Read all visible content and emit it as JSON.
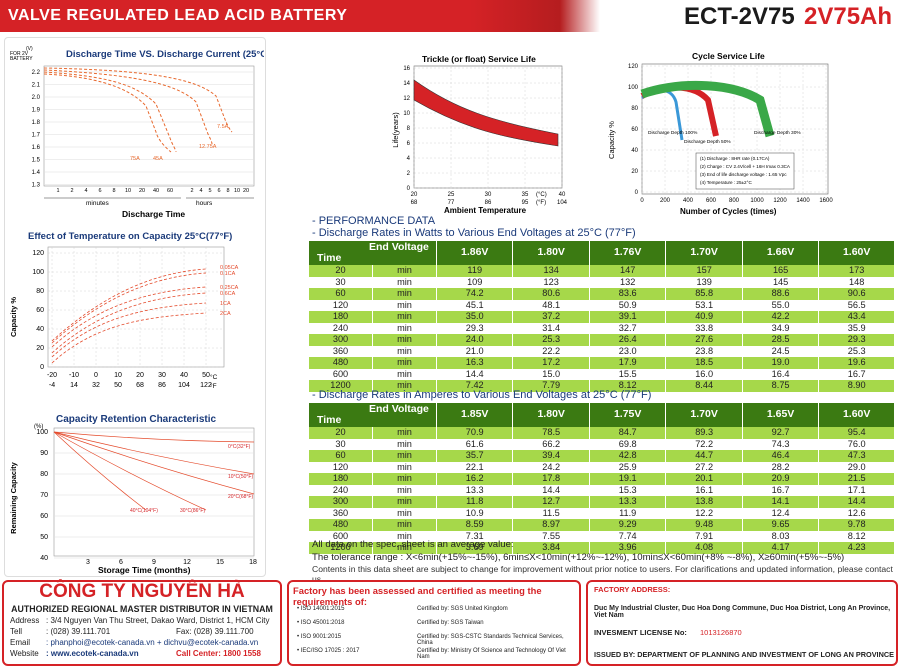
{
  "header": {
    "title": "VALVE REGULATED LEAD ACID BATTERY",
    "model": "ECT-2V75",
    "capacity": "2V75Ah"
  },
  "charts": {
    "discharge_curve": {
      "title": "Discharge Time VS. Discharge Current (25°C)",
      "ylabel_line1": "(V)",
      "ylabel_line2": "FOR 2V",
      "ylabel_line3": "BATTERY",
      "xlabel": "Discharge Time",
      "minutes": "minutes",
      "hours": "hours",
      "yticks": [
        "2.2",
        "2.1",
        "2.0",
        "1.9",
        "1.8",
        "1.7",
        "1.6",
        "1.5",
        "1.4",
        "1.3"
      ],
      "xticks_min": [
        "1",
        "2",
        "4",
        "6",
        "8",
        "10",
        "20",
        "40",
        "60"
      ],
      "xticks_hr": [
        "2",
        "4",
        "5",
        "6",
        "8",
        "10",
        "20"
      ],
      "labels": [
        "75A",
        "45A",
        "12.75A",
        "7.5A"
      ]
    },
    "temperature": {
      "title": "Effect of Temperature on Capacity 25°C(77°F)",
      "ylabel": "Capacity %",
      "yticks": [
        "120",
        "100",
        "80",
        "60",
        "40",
        "20",
        "0"
      ],
      "xticks_c": [
        "-20",
        "-10",
        "0",
        "10",
        "20",
        "30",
        "40",
        "50"
      ],
      "xticks_f": [
        "-4",
        "14",
        "32",
        "50",
        "68",
        "86",
        "104",
        "122"
      ],
      "unit_c": "°C",
      "unit_f": "°F",
      "labels": [
        "0.05CA",
        "0.1CA",
        "0.25CA",
        "0.6CA",
        "1CA",
        "2CA"
      ]
    },
    "retention": {
      "title": "Capacity Retention Characteristic",
      "ylabel": "Remaining Capacity",
      "unit": "(%)",
      "yticks": [
        "100",
        "90",
        "80",
        "70",
        "60",
        "50",
        "40"
      ],
      "xticks": [
        "3",
        "6",
        "9",
        "12",
        "15",
        "18"
      ],
      "xlabel": "Storage Time (months)",
      "labels": [
        "0°C(32°F)",
        "10°C(50°F)",
        "20°C(68°F)",
        "30°C(86°F)",
        "40°C(104°F)"
      ]
    },
    "trickle": {
      "title": "Trickle (or float) Service Life",
      "ylabel": "Life(years)",
      "yticks": [
        "16",
        "14",
        "12",
        "10",
        "8",
        "6",
        "4",
        "2",
        "0"
      ],
      "xticks_c": [
        "20",
        "25",
        "30",
        "35",
        "40"
      ],
      "xticks_f": [
        "68",
        "77",
        "86",
        "95",
        "104"
      ],
      "unit_c": "(°C)",
      "unit_f": "(°F)",
      "xlabel": "Ambient Temperature"
    },
    "cycle": {
      "title": "Cycle Service Life",
      "ylabel": "Capacity %",
      "yticks": [
        "120",
        "100",
        "80",
        "60",
        "40",
        "20",
        "0"
      ],
      "xticks": [
        "0",
        "200",
        "400",
        "600",
        "800",
        "1000",
        "1200",
        "1400",
        "1600"
      ],
      "xlabel": "Number of Cycles (times)",
      "labels": [
        "Discharge Depth 100%",
        "Discharge Depth 50%",
        "Discharge Depth 30%"
      ],
      "notes": [
        "(1) Discharge : 8HR rate (0.17CA)",
        "(2) Charge : CV 2.4V/cell + 16H Imax 0.3CA",
        "(3) End of life discharge voltage : 1.65 Vpc",
        "(4) Temperature : 25±2°C"
      ]
    }
  },
  "perf": {
    "heading": "- PERFORMANCE DATA",
    "watts_title": "- Discharge Rates in Watts to Various End Voltages at 25°C (77°F)",
    "amps_title": "- Discharge Rates in Amperes to Various End Voltages at 25°C (77°F)",
    "time_label": "Time",
    "end_voltage_label": "End Voltage",
    "watts_cols": [
      "1.86V",
      "1.80V",
      "1.76V",
      "1.70V",
      "1.66V",
      "1.60V"
    ],
    "amps_cols": [
      "1.85V",
      "1.80V",
      "1.75V",
      "1.70V",
      "1.65V",
      "1.60V"
    ],
    "times": [
      "20",
      "30",
      "60",
      "120",
      "180",
      "240",
      "300",
      "360",
      "480",
      "600",
      "1200"
    ],
    "unit": "min",
    "watts": [
      [
        "119",
        "134",
        "147",
        "157",
        "165",
        "173"
      ],
      [
        "109",
        "123",
        "132",
        "139",
        "145",
        "148"
      ],
      [
        "74.2",
        "80.6",
        "83.6",
        "85.8",
        "88.6",
        "90.6"
      ],
      [
        "45.1",
        "48.1",
        "50.9",
        "53.1",
        "55.0",
        "56.5"
      ],
      [
        "35.0",
        "37.2",
        "39.1",
        "40.9",
        "42.2",
        "43.4"
      ],
      [
        "29.3",
        "31.4",
        "32.7",
        "33.8",
        "34.9",
        "35.9"
      ],
      [
        "24.0",
        "25.3",
        "26.4",
        "27.6",
        "28.5",
        "29.3"
      ],
      [
        "21.0",
        "22.2",
        "23.0",
        "23.8",
        "24.5",
        "25.3"
      ],
      [
        "16.3",
        "17.2",
        "17.9",
        "18.5",
        "19.0",
        "19.6"
      ],
      [
        "14.4",
        "15.0",
        "15.5",
        "16.0",
        "16.4",
        "16.7"
      ],
      [
        "7.42",
        "7.79",
        "8.12",
        "8.44",
        "8.75",
        "8.90"
      ]
    ],
    "amps": [
      [
        "70.9",
        "78.5",
        "84.7",
        "89.3",
        "92.7",
        "95.4"
      ],
      [
        "61.6",
        "66.2",
        "69.8",
        "72.2",
        "74.3",
        "76.0"
      ],
      [
        "35.7",
        "39.4",
        "42.8",
        "44.7",
        "46.4",
        "47.3"
      ],
      [
        "22.1",
        "24.2",
        "25.9",
        "27.2",
        "28.2",
        "29.0"
      ],
      [
        "16.2",
        "17.8",
        "19.1",
        "20.1",
        "20.9",
        "21.5"
      ],
      [
        "13.3",
        "14.4",
        "15.3",
        "16.1",
        "16.7",
        "17.1"
      ],
      [
        "11.8",
        "12.7",
        "13.3",
        "13.8",
        "14.1",
        "14.4"
      ],
      [
        "10.9",
        "11.5",
        "11.9",
        "12.2",
        "12.4",
        "12.6"
      ],
      [
        "8.59",
        "8.97",
        "9.29",
        "9.48",
        "9.65",
        "9.78"
      ],
      [
        "7.31",
        "7.55",
        "7.74",
        "7.91",
        "8.03",
        "8.12"
      ],
      [
        "3.69",
        "3.84",
        "3.96",
        "4.08",
        "4.17",
        "4.23"
      ]
    ],
    "note1": "All data on the spec. sheet is an average value:",
    "note2": "The tolerance range : X<6min(+15%~-15%), 6min≤X<10min(+12%~-12%), 10min≤X<60min(+8% ~-8%), X≥60min(+5%~-5%)",
    "note3": "Contents in this data sheet are subject to change for improvement without prior notice to users. For clarifications and updated information, please contact us."
  },
  "company": {
    "name": "CÔNG TY NGUYÊN HÀ",
    "subtitle": "AUTHORIZED REGIONAL MASTER DISTRIBUTOR IN VIETNAM",
    "address_label": "Address",
    "address": ": 3/4 Nguyen Van Thu Street, Dakao Ward, District 1, HCM City",
    "tel_label": "Tell",
    "tel": ": (028) 39.111.701",
    "fax": "Fax: (028) 39.111.700",
    "email_label": "Email",
    "email": ": phanphoi@ecotek-canada.vn + dichvu@ecotek-canada.vn",
    "web_label": "Website",
    "web": ": www.ecotek-canada.vn",
    "callcenter": "Call Center: 1800 1558"
  },
  "certs": {
    "title": "Factory has been assessed and certified as meeting the requirements of:",
    "items": [
      [
        "ISO 14001:2015",
        "Certified by: SGS United Kingdom"
      ],
      [
        "ISO 45001:2018",
        "Certified by: SGS Taiwan"
      ],
      [
        "ISO 9001:2015",
        "Certified by: SGS-CSTC Standards Technical Services, China"
      ],
      [
        "IEC/ISO 17025 : 2017",
        "Certified by: Ministry Of Science and Technology Of Viet Nam"
      ]
    ]
  },
  "factory": {
    "addr_title": "FACTORY ADDRESS:",
    "addr": "Duc My Industrial Cluster, Duc Hoa Dong Commune, Duc Hoa District, Long An Province, Viet Nam",
    "license_label": "INVESMENT LICENSE No:",
    "license": "1013126870",
    "issued": "ISSUED BY: DEPARTMENT OF PLANNING AND INVESTMENT OF LONG AN PROVINCE"
  }
}
